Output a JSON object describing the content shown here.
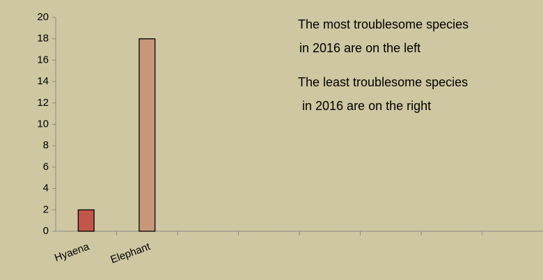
{
  "chart_data": {
    "type": "bar",
    "categories": [
      "Hyaena",
      "Elephant",
      null,
      null,
      null,
      null,
      null,
      null
    ],
    "values": [
      2,
      18,
      null,
      null,
      null,
      null,
      null,
      null
    ],
    "colors": [
      "#c0574a",
      "#c8977a",
      null,
      null,
      null,
      null,
      null,
      null
    ],
    "ylim": [
      0,
      20
    ],
    "yticks": [
      0,
      2,
      4,
      6,
      8,
      10,
      12,
      14,
      16,
      18,
      20
    ],
    "grid": false,
    "annotations": [
      {
        "lines": [
          "The most troublesome species",
          "in 2016 are on the left"
        ]
      },
      {
        "lines": [
          "The least troublesome species",
          "in 2016 are on the right"
        ]
      }
    ]
  }
}
